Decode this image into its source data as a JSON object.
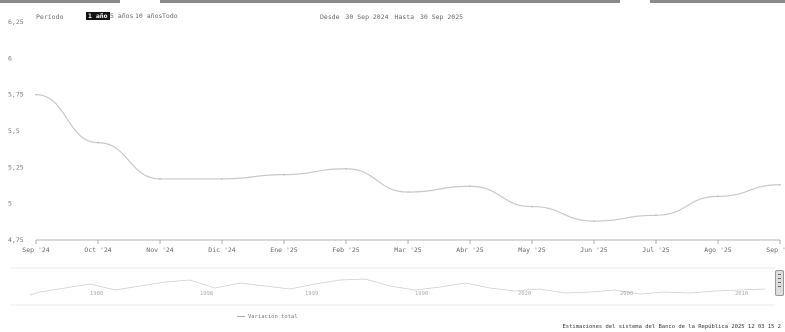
{
  "controls": {
    "period_label": "Período",
    "ranges": [
      "1 año",
      "5 años",
      "10 años",
      "Todo"
    ],
    "active_range": "1 año",
    "date_from_label": "Desde",
    "date_from": "30 Sep 2024",
    "date_to_label": "Hasta",
    "date_to": "30 Sep 2025"
  },
  "colors": {
    "line": "#c8c8c8",
    "axis": "#9a9a9a",
    "grid": "#ededed"
  },
  "chart_data": {
    "type": "line",
    "title": "",
    "xlabel": "",
    "ylabel": "",
    "categories": [
      "Sep '24",
      "Oct '24",
      "Nov '24",
      "Dic '24",
      "Ene '25",
      "Feb '25",
      "Mar '25",
      "Abr '25",
      "May '25",
      "Jun '25",
      "Jul '25",
      "Ago '25",
      "Sep '25"
    ],
    "ylim": [
      4.75,
      6.25
    ],
    "yticks": [
      "6,25",
      "6",
      "5,75",
      "5,5",
      "5,25",
      "5",
      "4,75"
    ],
    "series": [
      {
        "values": [
          5.75,
          5.42,
          5.17,
          5.17,
          5.2,
          5.24,
          5.08,
          5.12,
          4.98,
          4.88,
          4.92,
          5.05,
          5.13
        ]
      }
    ],
    "grid": false
  },
  "navigator": {
    "year_labels": [
      "1990",
      "2000",
      "2010"
    ],
    "extra_labels": [
      "1980",
      "1998",
      "1999",
      "2020"
    ]
  },
  "legend_label": "Variación total",
  "footer": "Estimaciones del sistema del Banco de la República 2025 12 03 15 2"
}
